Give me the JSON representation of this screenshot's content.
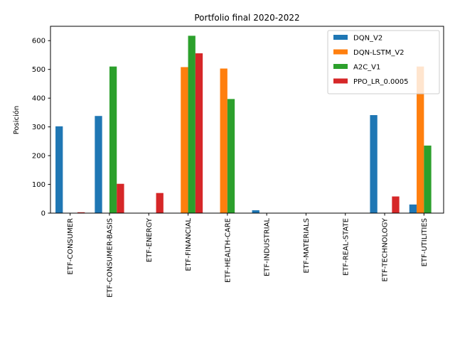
{
  "chart_data": {
    "type": "bar",
    "title": "Portfolio final 2020-2022",
    "xlabel": "",
    "ylabel": "Posición",
    "ylim": [
      0,
      650
    ],
    "yticks": [
      0,
      100,
      200,
      300,
      400,
      500,
      600
    ],
    "grid": false,
    "legend_position": "top-right",
    "categories": [
      "ETF-CONSUMER",
      "ETF-CONSUMER-BASIS",
      "ETF-ENERGY",
      "ETF-FINANCIAL",
      "ETF-HEALTH-CARE",
      "ETF-INDUSTRIAL",
      "ETF-MATERIALS",
      "ETF-REAL-STATE",
      "ETF-TECHNOLOGY",
      "ETF-UTILITIES"
    ],
    "series": [
      {
        "name": "DQN_V2",
        "color": "#1f77b4",
        "values": [
          302,
          338,
          0,
          0,
          0,
          10,
          0,
          0,
          341,
          30
        ]
      },
      {
        "name": "DQN-LSTM_V2",
        "color": "#ff7f0e",
        "values": [
          0,
          0,
          0,
          508,
          503,
          0,
          0,
          0,
          0,
          510
        ]
      },
      {
        "name": "A2C_V1",
        "color": "#2ca02c",
        "values": [
          0,
          510,
          0,
          617,
          397,
          0,
          0,
          0,
          0,
          235
        ]
      },
      {
        "name": "PPO_LR_0.0005",
        "color": "#d62728",
        "values": [
          3,
          102,
          70,
          556,
          0,
          0,
          0,
          0,
          58,
          0
        ]
      }
    ]
  }
}
